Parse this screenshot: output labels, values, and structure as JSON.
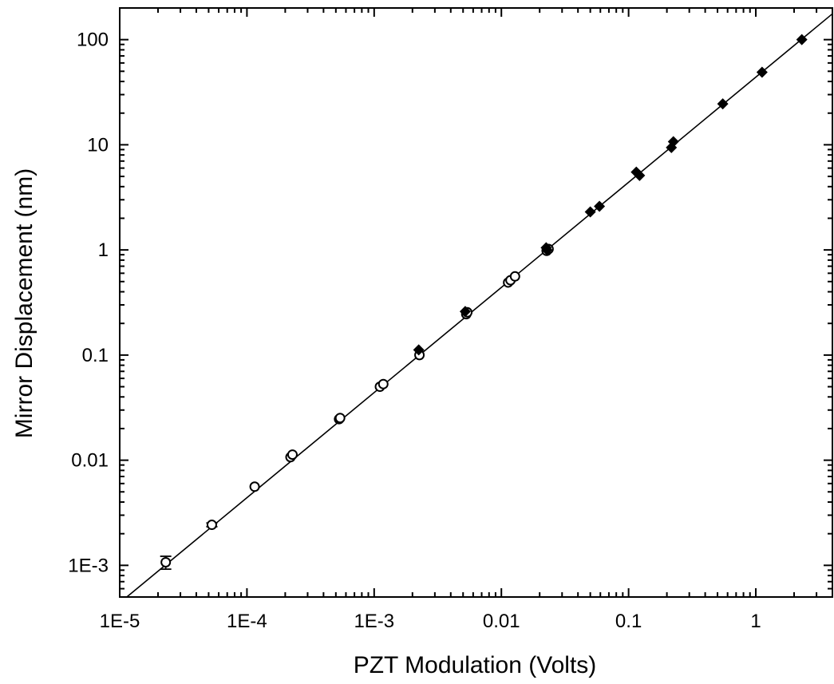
{
  "chart_data": {
    "type": "scatter",
    "title": "",
    "xlabel": "PZT Modulation (Volts)",
    "ylabel": "Mirror Displacement (nm)",
    "x_scale": "log",
    "y_scale": "log",
    "xlim": [
      1e-05,
      4
    ],
    "ylim": [
      0.0005,
      200
    ],
    "grid": false,
    "x_ticks": [
      {
        "value": 1e-05,
        "label": "1E-5"
      },
      {
        "value": 0.0001,
        "label": "1E-4"
      },
      {
        "value": 0.001,
        "label": "1E-3"
      },
      {
        "value": 0.01,
        "label": "0.01"
      },
      {
        "value": 0.1,
        "label": "0.1"
      },
      {
        "value": 1,
        "label": "1"
      }
    ],
    "y_ticks": [
      {
        "value": 0.001,
        "label": "1E-3"
      },
      {
        "value": 0.01,
        "label": "0.01"
      },
      {
        "value": 0.1,
        "label": "0.1"
      },
      {
        "value": 1,
        "label": "1"
      },
      {
        "value": 10,
        "label": "10"
      },
      {
        "value": 100,
        "label": "100"
      }
    ],
    "series": [
      {
        "marker": "open-circle",
        "points": [
          {
            "x": 2.3e-05,
            "y": 0.00107,
            "err": 0.00015
          },
          {
            "x": 5.3e-05,
            "y": 0.00243,
            "err": 0.0001
          },
          {
            "x": 0.000115,
            "y": 0.0056
          },
          {
            "x": 0.00022,
            "y": 0.0107
          },
          {
            "x": 0.000228,
            "y": 0.0113
          },
          {
            "x": 0.00053,
            "y": 0.0246
          },
          {
            "x": 0.00054,
            "y": 0.0252
          },
          {
            "x": 0.00111,
            "y": 0.05
          },
          {
            "x": 0.00118,
            "y": 0.053
          },
          {
            "x": 0.00227,
            "y": 0.1
          },
          {
            "x": 0.0053,
            "y": 0.245
          },
          {
            "x": 0.0054,
            "y": 0.255
          },
          {
            "x": 0.0113,
            "y": 0.49
          },
          {
            "x": 0.0118,
            "y": 0.515
          },
          {
            "x": 0.0128,
            "y": 0.56
          },
          {
            "x": 0.0227,
            "y": 0.98
          },
          {
            "x": 0.0235,
            "y": 1.02
          }
        ]
      },
      {
        "marker": "filled-diamond",
        "points": [
          {
            "x": 0.00224,
            "y": 0.112
          },
          {
            "x": 0.0052,
            "y": 0.26
          },
          {
            "x": 0.0225,
            "y": 1.05
          },
          {
            "x": 0.0228,
            "y": 1.0
          },
          {
            "x": 0.05,
            "y": 2.3
          },
          {
            "x": 0.059,
            "y": 2.6
          },
          {
            "x": 0.115,
            "y": 5.5
          },
          {
            "x": 0.122,
            "y": 5.1
          },
          {
            "x": 0.217,
            "y": 9.4
          },
          {
            "x": 0.225,
            "y": 10.7
          },
          {
            "x": 0.55,
            "y": 24.5
          },
          {
            "x": 1.12,
            "y": 49
          },
          {
            "x": 2.3,
            "y": 100
          }
        ]
      }
    ],
    "fit_line": {
      "slope_nm_per_volt": 44,
      "type": "linear-through-origin"
    }
  }
}
